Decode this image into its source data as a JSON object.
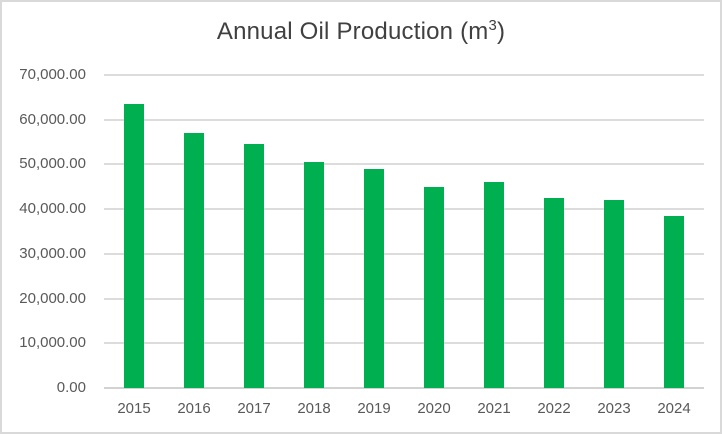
{
  "title_parts": {
    "pre": "Annual Oil Production (m",
    "sup": "3",
    "post": ")"
  },
  "chart_data": {
    "type": "bar",
    "title": "Annual Oil Production (m³)",
    "categories": [
      "2015",
      "2016",
      "2017",
      "2018",
      "2019",
      "2020",
      "2021",
      "2022",
      "2023",
      "2024"
    ],
    "values": [
      63500,
      57000,
      54500,
      50500,
      49000,
      45000,
      46000,
      42500,
      42000,
      38500
    ],
    "xlabel": "",
    "ylabel": "",
    "ylim": [
      0,
      70000
    ],
    "ytick_step": 10000,
    "ytick_labels": [
      "0.00",
      "10,000.00",
      "20,000.00",
      "30,000.00",
      "40,000.00",
      "50,000.00",
      "60,000.00",
      "70,000.00"
    ],
    "grid": true,
    "legend": "none"
  },
  "colors": {
    "bar": "#00B050",
    "gridline": "#DCDCDC",
    "axis_line": "#D2D2D2",
    "title_text": "#404040",
    "axis_text": "#595959",
    "frame_border": "#D9D9D9",
    "background": "#FFFFFF"
  }
}
